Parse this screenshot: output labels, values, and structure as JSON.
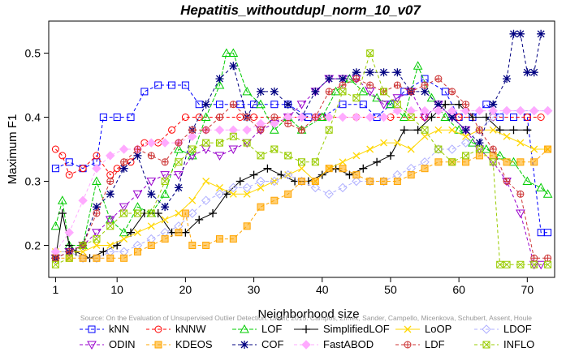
{
  "chart_data": {
    "type": "line",
    "title": "Hepatitis_withoutdupl_norm_10_v07",
    "xlabel": "Neighborhood size",
    "ylabel": "Maximum F1",
    "xlim": [
      0,
      74
    ],
    "ylim": [
      0.15,
      0.55
    ],
    "xticks": [
      "1",
      "10",
      "20",
      "30",
      "40",
      "50",
      "60",
      "70"
    ],
    "yticks": [
      "0.2",
      "0.3",
      "0.4",
      "0.5"
    ],
    "grid": false,
    "legend_position": "bottom",
    "watermark": "Source: On the Evaluation of Unsupervised Outlier Detection. DAMI, 2015. Campos, Zimek, Sander, Campello, Micenkova, Schubert, Assent, Houle",
    "series": [
      {
        "name": "kNN",
        "color": "#0000ff",
        "marker": "square",
        "dash": "4,3",
        "x": [
          1,
          3,
          5,
          7,
          8,
          10,
          12,
          14,
          16,
          18,
          20,
          22,
          25,
          28,
          30,
          33,
          35,
          38,
          40,
          43,
          46,
          48,
          50,
          52,
          55,
          58,
          60,
          62,
          64,
          66,
          68,
          70,
          72,
          73
        ],
        "y": [
          0.32,
          0.33,
          0.32,
          0.33,
          0.4,
          0.4,
          0.4,
          0.44,
          0.45,
          0.45,
          0.45,
          0.42,
          0.42,
          0.42,
          0.42,
          0.42,
          0.42,
          0.4,
          0.4,
          0.42,
          0.42,
          0.4,
          0.42,
          0.44,
          0.46,
          0.44,
          0.4,
          0.4,
          0.42,
          0.4,
          0.4,
          0.4,
          0.22,
          0.22
        ]
      },
      {
        "name": "kNNW",
        "color": "#ff0000",
        "marker": "circle",
        "dash": "4,3",
        "x": [
          1,
          2,
          3,
          5,
          7,
          9,
          10,
          12,
          14,
          16,
          18,
          20,
          22,
          25,
          28,
          30,
          35,
          40,
          45,
          50,
          55,
          60,
          65,
          70,
          72
        ],
        "y": [
          0.35,
          0.34,
          0.31,
          0.32,
          0.34,
          0.31,
          0.32,
          0.33,
          0.36,
          0.36,
          0.38,
          0.4,
          0.4,
          0.4,
          0.4,
          0.4,
          0.4,
          0.4,
          0.4,
          0.4,
          0.4,
          0.4,
          0.4,
          0.4,
          0.4
        ]
      },
      {
        "name": "LOF",
        "color": "#00cc00",
        "marker": "triangle",
        "dash": "5,2",
        "x": [
          1,
          2,
          3,
          5,
          7,
          9,
          11,
          13,
          15,
          17,
          19,
          21,
          23,
          25,
          26,
          27,
          29,
          31,
          33,
          35,
          37,
          40,
          42,
          44,
          46,
          48,
          50,
          52,
          54,
          56,
          58,
          60,
          62,
          64,
          66,
          68,
          70,
          72,
          73
        ],
        "y": [
          0.23,
          0.27,
          0.2,
          0.2,
          0.3,
          0.24,
          0.22,
          0.26,
          0.25,
          0.28,
          0.35,
          0.34,
          0.4,
          0.45,
          0.5,
          0.5,
          0.44,
          0.42,
          0.38,
          0.4,
          0.38,
          0.4,
          0.44,
          0.46,
          0.44,
          0.43,
          0.42,
          0.4,
          0.48,
          0.43,
          0.4,
          0.38,
          0.36,
          0.35,
          0.34,
          0.33,
          0.3,
          0.29,
          0.28
        ]
      },
      {
        "name": "SimplifiedLOF",
        "color": "#000000",
        "marker": "plus",
        "dash": "",
        "x": [
          1,
          2,
          3,
          4,
          6,
          8,
          10,
          12,
          14,
          16,
          18,
          20,
          22,
          24,
          26,
          28,
          30,
          32,
          34,
          36,
          38,
          40,
          42,
          44,
          46,
          48,
          50,
          52,
          54,
          56,
          58,
          60,
          62,
          64,
          66,
          68,
          70
        ],
        "y": [
          0.18,
          0.25,
          0.2,
          0.19,
          0.18,
          0.19,
          0.2,
          0.22,
          0.25,
          0.25,
          0.22,
          0.22,
          0.24,
          0.25,
          0.28,
          0.3,
          0.31,
          0.32,
          0.31,
          0.3,
          0.3,
          0.31,
          0.32,
          0.31,
          0.32,
          0.33,
          0.34,
          0.38,
          0.38,
          0.4,
          0.42,
          0.42,
          0.4,
          0.4,
          0.38,
          0.38,
          0.38
        ]
      },
      {
        "name": "LoOP",
        "color": "#ffd700",
        "marker": "x",
        "dash": "",
        "x": [
          1,
          3,
          5,
          7,
          9,
          11,
          13,
          15,
          17,
          19,
          21,
          23,
          25,
          27,
          29,
          31,
          33,
          35,
          37,
          39,
          41,
          43,
          45,
          47,
          49,
          51,
          53,
          55,
          57,
          59,
          61,
          63,
          65,
          67,
          69,
          71,
          73
        ],
        "y": [
          0.19,
          0.19,
          0.19,
          0.2,
          0.2,
          0.21,
          0.22,
          0.23,
          0.24,
          0.25,
          0.27,
          0.3,
          0.29,
          0.28,
          0.28,
          0.29,
          0.3,
          0.31,
          0.32,
          0.3,
          0.32,
          0.33,
          0.34,
          0.35,
          0.36,
          0.36,
          0.35,
          0.37,
          0.38,
          0.38,
          0.37,
          0.38,
          0.38,
          0.37,
          0.36,
          0.35,
          0.35
        ]
      },
      {
        "name": "LDOF",
        "color": "#b0b0ff",
        "marker": "diamond",
        "dash": "4,3",
        "x": [
          1,
          3,
          5,
          7,
          9,
          11,
          13,
          15,
          17,
          19,
          21,
          23,
          25,
          27,
          29,
          31,
          33,
          35,
          37,
          39,
          41,
          43,
          45,
          47,
          49,
          51,
          53,
          55,
          57,
          59,
          61,
          63,
          65,
          67,
          69,
          71,
          73
        ],
        "y": [
          0.19,
          0.19,
          0.18,
          0.18,
          0.19,
          0.19,
          0.2,
          0.21,
          0.22,
          0.23,
          0.25,
          0.27,
          0.28,
          0.29,
          0.29,
          0.3,
          0.3,
          0.31,
          0.3,
          0.29,
          0.28,
          0.29,
          0.3,
          0.3,
          0.3,
          0.31,
          0.32,
          0.33,
          0.35,
          0.35,
          0.36,
          0.38,
          0.4,
          0.41,
          0.41,
          0.41,
          0.41
        ]
      },
      {
        "name": "ODIN",
        "color": "#9900cc",
        "marker": "triangle-down",
        "dash": "4,3",
        "x": [
          1,
          3,
          5,
          7,
          9,
          11,
          13,
          15,
          17,
          19,
          21,
          23,
          25,
          27,
          29,
          31,
          33,
          35,
          37,
          39,
          41,
          43,
          45,
          47,
          49,
          51,
          53,
          55,
          57,
          59,
          61,
          63,
          65,
          67,
          69,
          71,
          72
        ],
        "y": [
          0.18,
          0.19,
          0.2,
          0.22,
          0.24,
          0.26,
          0.28,
          0.3,
          0.31,
          0.31,
          0.34,
          0.35,
          0.34,
          0.35,
          0.36,
          0.38,
          0.39,
          0.4,
          0.42,
          0.44,
          0.46,
          0.46,
          0.46,
          0.44,
          0.42,
          0.43,
          0.44,
          0.4,
          0.42,
          0.4,
          0.38,
          0.35,
          0.33,
          0.3,
          0.25,
          0.17,
          0.17
        ]
      },
      {
        "name": "KDEOS",
        "color": "#ffa500",
        "marker": "square-filled",
        "dash": "4,3",
        "x": [
          1,
          3,
          5,
          7,
          9,
          11,
          13,
          15,
          17,
          19,
          20,
          21,
          23,
          25,
          27,
          29,
          31,
          33,
          35,
          37,
          39,
          41,
          43,
          45,
          47,
          49,
          51,
          53,
          55,
          57,
          59,
          61,
          63,
          65,
          67,
          69,
          71,
          73
        ],
        "y": [
          0.18,
          0.18,
          0.18,
          0.18,
          0.18,
          0.18,
          0.19,
          0.2,
          0.21,
          0.22,
          0.25,
          0.2,
          0.2,
          0.21,
          0.21,
          0.23,
          0.26,
          0.27,
          0.28,
          0.3,
          0.3,
          0.32,
          0.32,
          0.31,
          0.3,
          0.3,
          0.3,
          0.31,
          0.32,
          0.33,
          0.33,
          0.33,
          0.34,
          0.34,
          0.33,
          0.33,
          0.33,
          0.35
        ]
      },
      {
        "name": "COF",
        "color": "#000080",
        "marker": "star",
        "dash": "4,3",
        "x": [
          1,
          3,
          5,
          7,
          9,
          11,
          13,
          15,
          17,
          19,
          21,
          23,
          25,
          27,
          29,
          31,
          33,
          35,
          37,
          39,
          41,
          43,
          45,
          47,
          49,
          51,
          53,
          55,
          57,
          59,
          61,
          63,
          65,
          67,
          68,
          69,
          70,
          71,
          72
        ],
        "y": [
          0.18,
          0.19,
          0.2,
          0.26,
          0.28,
          0.32,
          0.34,
          0.28,
          0.26,
          0.29,
          0.38,
          0.42,
          0.46,
          0.48,
          0.4,
          0.44,
          0.44,
          0.42,
          0.4,
          0.44,
          0.46,
          0.46,
          0.47,
          0.47,
          0.47,
          0.47,
          0.44,
          0.44,
          0.42,
          0.4,
          0.38,
          0.36,
          0.42,
          0.46,
          0.53,
          0.53,
          0.47,
          0.47,
          0.53
        ]
      },
      {
        "name": "FastABOD",
        "color": "#ffaaff",
        "marker": "diamond-filled",
        "dash": "4,3",
        "x": [
          1,
          3,
          5,
          7,
          9,
          11,
          13,
          15,
          17,
          19,
          21,
          23,
          25,
          27,
          29,
          31,
          33,
          35,
          37,
          39,
          41,
          43,
          45,
          47,
          49,
          51,
          53,
          55,
          57,
          59,
          61,
          63,
          65,
          67,
          69,
          71,
          73
        ],
        "y": [
          0.19,
          0.22,
          0.27,
          0.32,
          0.34,
          0.35,
          0.35,
          0.36,
          0.36,
          0.36,
          0.37,
          0.38,
          0.38,
          0.38,
          0.38,
          0.39,
          0.39,
          0.4,
          0.4,
          0.4,
          0.4,
          0.4,
          0.4,
          0.4,
          0.4,
          0.41,
          0.41,
          0.41,
          0.41,
          0.41,
          0.41,
          0.41,
          0.41,
          0.41,
          0.41,
          0.41,
          0.41
        ]
      },
      {
        "name": "LDF",
        "color": "#cc3333",
        "marker": "circle-plus",
        "dash": "4,3",
        "x": [
          1,
          3,
          5,
          7,
          9,
          11,
          13,
          15,
          17,
          19,
          21,
          23,
          25,
          27,
          29,
          31,
          33,
          35,
          37,
          39,
          41,
          43,
          45,
          47,
          49,
          51,
          53,
          55,
          57,
          59,
          61,
          63,
          65,
          67,
          69,
          71,
          73
        ],
        "y": [
          0.18,
          0.19,
          0.2,
          0.25,
          0.3,
          0.33,
          0.35,
          0.34,
          0.33,
          0.36,
          0.38,
          0.38,
          0.4,
          0.42,
          0.4,
          0.38,
          0.4,
          0.39,
          0.38,
          0.4,
          0.44,
          0.45,
          0.46,
          0.45,
          0.44,
          0.45,
          0.44,
          0.45,
          0.46,
          0.44,
          0.42,
          0.38,
          0.35,
          0.3,
          0.28,
          0.18,
          0.18
        ]
      },
      {
        "name": "INFLO",
        "color": "#99cc00",
        "marker": "x-square",
        "dash": "4,3",
        "x": [
          1,
          3,
          5,
          7,
          9,
          11,
          13,
          15,
          17,
          19,
          21,
          23,
          25,
          27,
          29,
          31,
          33,
          35,
          37,
          39,
          41,
          43,
          45,
          47,
          49,
          51,
          53,
          55,
          57,
          59,
          61,
          63,
          65,
          66,
          67,
          69,
          71,
          73
        ],
        "y": [
          0.17,
          0.18,
          0.2,
          0.21,
          0.23,
          0.25,
          0.25,
          0.25,
          0.3,
          0.33,
          0.35,
          0.36,
          0.36,
          0.37,
          0.36,
          0.34,
          0.35,
          0.34,
          0.33,
          0.33,
          0.38,
          0.44,
          0.43,
          0.5,
          0.44,
          0.42,
          0.4,
          0.38,
          0.35,
          0.33,
          0.34,
          0.35,
          0.33,
          0.17,
          0.17,
          0.17,
          0.17,
          0.17
        ]
      }
    ]
  }
}
